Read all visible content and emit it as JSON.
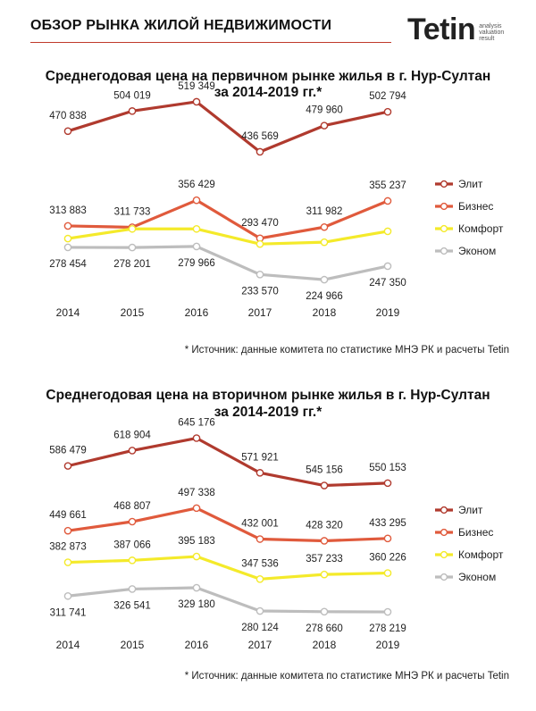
{
  "header": {
    "title": "ОБЗОР РЫНКА ЖИЛОЙ НЕДВИЖИМОСТИ",
    "logo": "Tetin",
    "logo_tag": [
      "analysis",
      "valuation",
      "result"
    ]
  },
  "colors": {
    "elite": "#b03a2e",
    "business": "#e05a3c",
    "comfort": "#f4ea2a",
    "econom": "#bdbdbd"
  },
  "chart_data": [
    {
      "type": "line",
      "title": [
        "Среднегодовая цена на первичном рынке жилья в г. Нур-Султан",
        "за 2014-2019 гг.*"
      ],
      "source": "* Источник: данные комитета по статистике МНЭ РК и расчеты Tetin",
      "x": [
        "2014",
        "2015",
        "2016",
        "2017",
        "2018",
        "2019"
      ],
      "ylim": [
        200000,
        540000
      ],
      "legend_position": "right",
      "series": [
        {
          "name": "Элит",
          "color_key": "elite",
          "values": [
            470838,
            504019,
            519349,
            436569,
            479960,
            502794
          ],
          "labels": [
            "470 838",
            "504 019",
            "519 349",
            "436 569",
            "479 960",
            "502 794"
          ]
        },
        {
          "name": "Бизнес",
          "color_key": "business",
          "values": [
            313883,
            311733,
            356429,
            293470,
            311982,
            355237
          ],
          "labels": [
            "313 883",
            "311 733",
            "356 429",
            "293 470",
            "311 982",
            "355 237"
          ]
        },
        {
          "name": "Комфорт",
          "color_key": "comfort",
          "values": [
            293000,
            309000,
            309000,
            284000,
            287000,
            305000
          ],
          "labels": [
            "",
            "",
            "",
            "",
            "",
            ""
          ]
        },
        {
          "name": "Эконом",
          "color_key": "econom",
          "values": [
            278454,
            278201,
            279966,
            233570,
            224966,
            247350
          ],
          "labels": [
            "278 454",
            "278 201",
            "279 966",
            "233 570",
            "224 966",
            "247 350"
          ]
        }
      ]
    },
    {
      "type": "line",
      "title": [
        "Среднегодовая цена на вторичном рынке жилья в г. Нур-Султан",
        "за 2014-2019 гг.*"
      ],
      "source": "* Источник: данные комитета по статистике МНЭ РК и расчеты Tetin",
      "x": [
        "2014",
        "2015",
        "2016",
        "2017",
        "2018",
        "2019"
      ],
      "ylim": [
        250000,
        665000
      ],
      "legend_position": "right",
      "series": [
        {
          "name": "Элит",
          "color_key": "elite",
          "values": [
            586479,
            618904,
            645176,
            571921,
            545156,
            550153
          ],
          "labels": [
            "586 479",
            "618 904",
            "645 176",
            "571 921",
            "545 156",
            "550 153"
          ]
        },
        {
          "name": "Бизнес",
          "color_key": "business",
          "values": [
            449661,
            468807,
            497338,
            432001,
            428320,
            433295
          ],
          "labels": [
            "449 661",
            "468 807",
            "497 338",
            "432 001",
            "428 320",
            "433 295"
          ]
        },
        {
          "name": "Комфорт",
          "color_key": "comfort",
          "values": [
            382873,
            387066,
            395183,
            347536,
            357233,
            360226
          ],
          "labels": [
            "382 873",
            "387 066",
            "395 183",
            "347 536",
            "357 233",
            "360 226"
          ]
        },
        {
          "name": "Эконом",
          "color_key": "econom",
          "values": [
            311741,
            326541,
            329180,
            280124,
            278660,
            278219
          ],
          "labels": [
            "311 741",
            "326 541",
            "329 180",
            "280 124",
            "278 660",
            "278 219"
          ]
        }
      ]
    }
  ]
}
